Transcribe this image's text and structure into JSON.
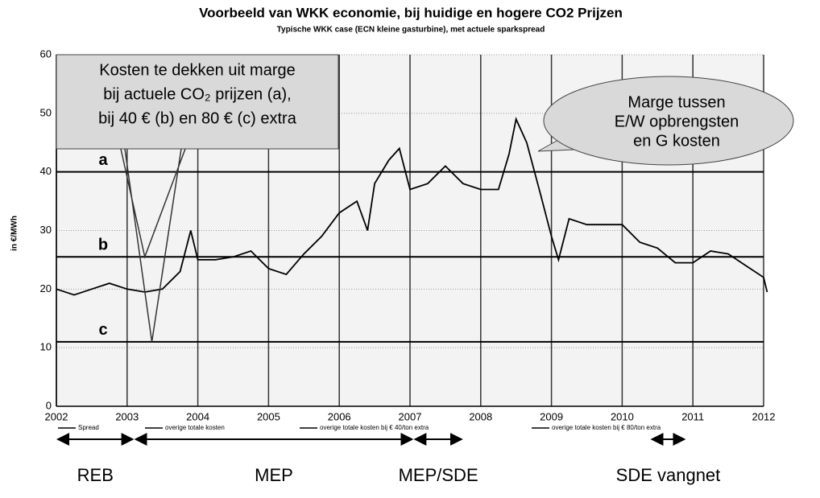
{
  "chart_data": {
    "type": "line",
    "title": "Voorbeeld van WKK economie, bij huidige en hogere CO2 Prijzen",
    "subtitle": "Typische WKK case (ECN kleine gasturbine), met actuele sparkspread",
    "y_label": "in €/MWh",
    "x": [
      2002.0,
      2002.25,
      2002.5,
      2002.75,
      2003.0,
      2003.25,
      2003.5,
      2003.75,
      2003.9,
      2004.0,
      2004.25,
      2004.5,
      2004.75,
      2005.0,
      2005.25,
      2005.5,
      2005.75,
      2006.0,
      2006.25,
      2006.4,
      2006.5,
      2006.7,
      2006.85,
      2007.0,
      2007.25,
      2007.5,
      2007.75,
      2008.0,
      2008.25,
      2008.4,
      2008.5,
      2008.65,
      2008.85,
      2009.0,
      2009.1,
      2009.25,
      2009.5,
      2009.75,
      2010.0,
      2010.25,
      2010.5,
      2010.75,
      2011.0,
      2011.25,
      2011.5,
      2011.75,
      2012.0,
      2012.05
    ],
    "series": [
      {
        "name": "Spread",
        "color": "#000000",
        "values": [
          20,
          19,
          20,
          21,
          20,
          19.5,
          20,
          23,
          30,
          25,
          25,
          25.5,
          26.5,
          23.5,
          22.5,
          26,
          29,
          33,
          35,
          30,
          38,
          42,
          44,
          37,
          38,
          41,
          38,
          37,
          37,
          43,
          49,
          45,
          36,
          29,
          25,
          32,
          31,
          31,
          31,
          28,
          27,
          24.5,
          24.5,
          26.5,
          26,
          24,
          22,
          19.5
        ]
      }
    ],
    "levels": [
      {
        "label": "a",
        "name": "overige totale kosten",
        "value": 40
      },
      {
        "label": "b",
        "name": "overige totale kosten bij € 40/ton extra",
        "value": 25.5
      },
      {
        "label": "c",
        "name": "overige totale kosten bij € 80/ton extra",
        "value": 11
      }
    ],
    "xlim": [
      2002,
      2012
    ],
    "xticks": [
      2002,
      2003,
      2004,
      2005,
      2006,
      2007,
      2008,
      2009,
      2010,
      2011,
      2012
    ],
    "ylim": [
      0,
      60
    ],
    "yticks": [
      0,
      10,
      20,
      30,
      40,
      50,
      60
    ],
    "grid": true,
    "callout_costs": [
      "Kosten te dekken uit marge",
      "bij actuele CO₂ prijzen (a),",
      "bij 40 € (b) en 80 € (c) extra"
    ],
    "callout_margin": [
      "Marge tussen",
      "E/W opbrengsten",
      "en G kosten"
    ],
    "periods": [
      {
        "label": "REB",
        "start": 2002,
        "end": 2003.1
      },
      {
        "label": "MEP",
        "start": 2003.1,
        "end": 2007.05
      },
      {
        "label": "MEP/SDE",
        "start": 2007.05,
        "end": 2007.75
      },
      {
        "label": "SDE vangnet",
        "start": 2010.4,
        "end": 2010.9
      }
    ]
  }
}
